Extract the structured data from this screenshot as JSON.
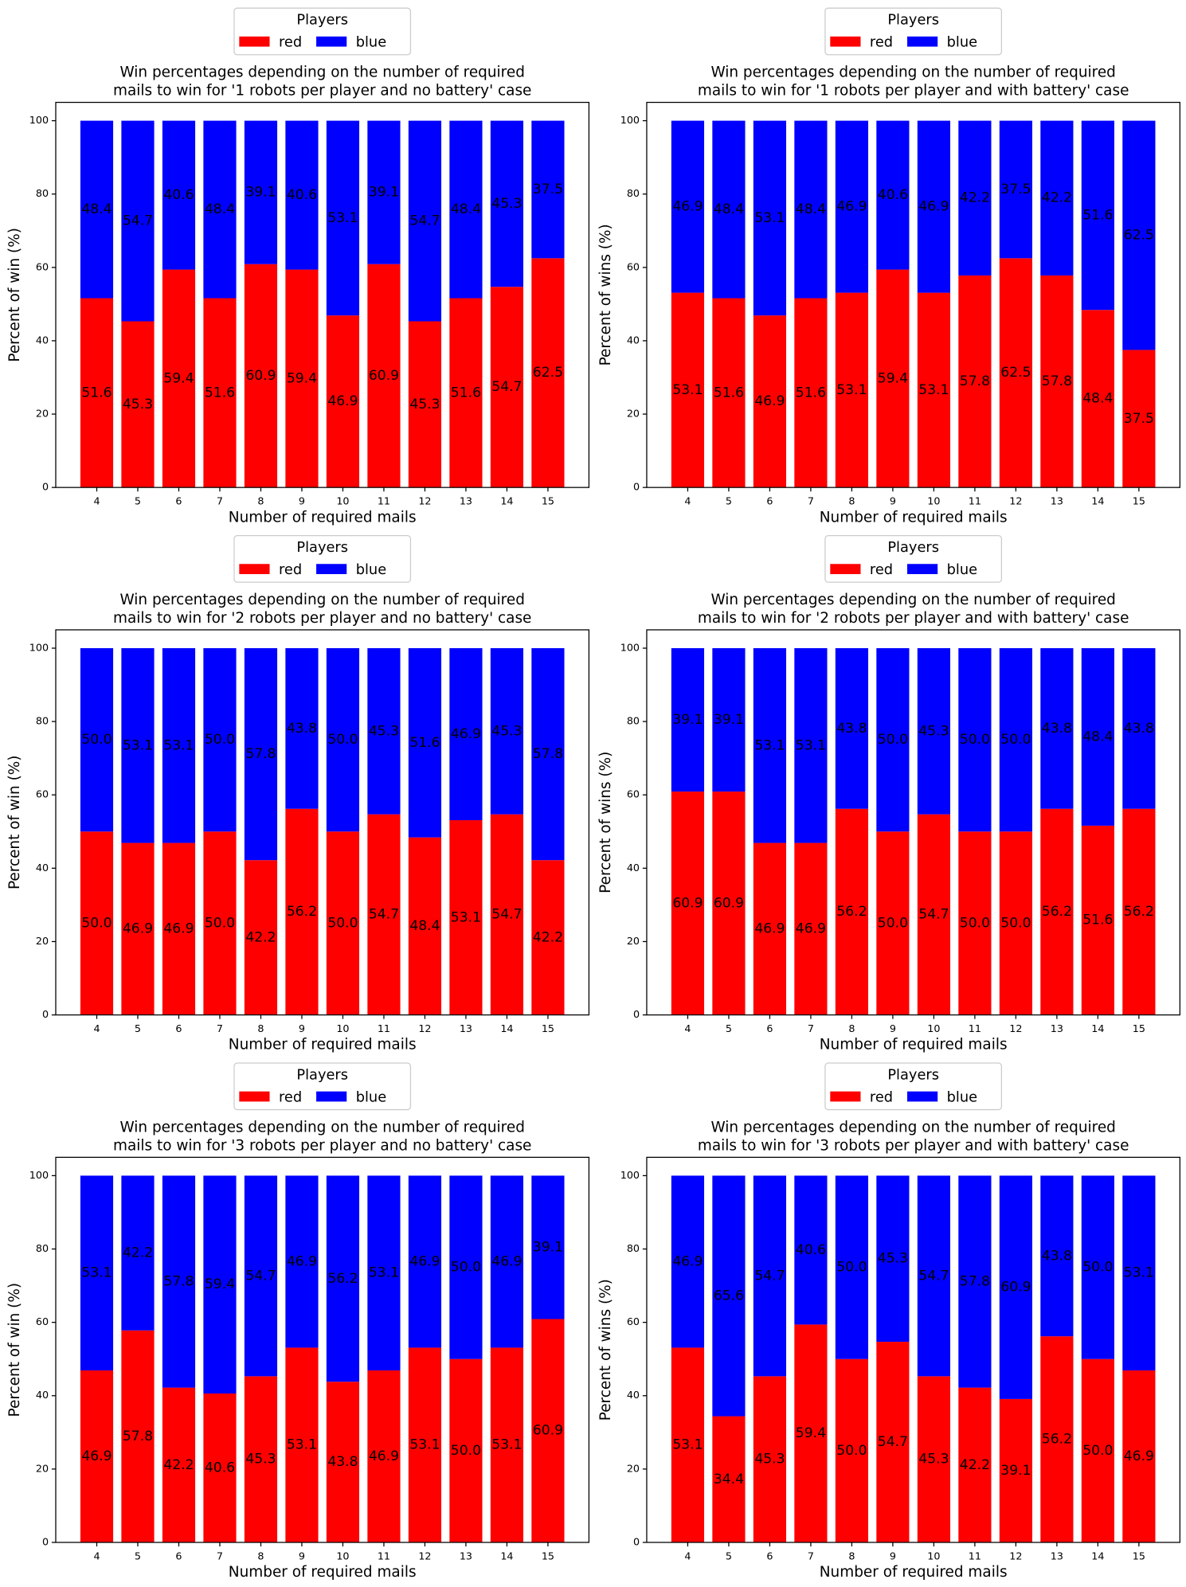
{
  "chart_data": [
    {
      "type": "bar",
      "stacked": true,
      "title": [
        "Win percentages depending on the number of required",
        "mails to win for '1 robots per player and no battery' case"
      ],
      "xlabel": "Number of required mails",
      "ylabel": "Percent of win (%)",
      "legend": {
        "title": "Players",
        "loc": "upper center"
      },
      "categories": [
        "4",
        "5",
        "6",
        "7",
        "8",
        "9",
        "10",
        "11",
        "12",
        "13",
        "14",
        "15"
      ],
      "series": [
        {
          "name": "red",
          "color": "#ff0000",
          "values": [
            51.6,
            45.3,
            59.4,
            51.6,
            60.9,
            59.4,
            46.9,
            60.9,
            45.3,
            51.6,
            54.7,
            62.5
          ],
          "value_labels": [
            "51.6",
            "45.3",
            "59.4",
            "51.6",
            "60.9",
            "59.4",
            "46.9",
            "60.9",
            "45.3",
            "51.6",
            "54.7",
            "62.5"
          ]
        },
        {
          "name": "blue",
          "color": "#0000ff",
          "values": [
            48.4,
            54.7,
            40.6,
            48.4,
            39.1,
            40.6,
            53.1,
            39.1,
            54.7,
            48.4,
            45.3,
            37.5
          ],
          "value_labels": [
            "48.4",
            "54.7",
            "40.6",
            "48.4",
            "39.1",
            "40.6",
            "53.1",
            "39.1",
            "54.7",
            "48.4",
            "45.3",
            "37.5"
          ]
        }
      ],
      "ylim": [
        0,
        105
      ],
      "yticks": [
        0,
        20,
        40,
        60,
        80,
        100
      ]
    },
    {
      "type": "bar",
      "stacked": true,
      "title": [
        "Win percentages depending on the number of required",
        "mails to win for '1 robots per player and with battery' case"
      ],
      "xlabel": "Number of required mails",
      "ylabel": "Percent of wins (%)",
      "legend": {
        "title": "Players",
        "loc": "upper center"
      },
      "categories": [
        "4",
        "5",
        "6",
        "7",
        "8",
        "9",
        "10",
        "11",
        "12",
        "13",
        "14",
        "15"
      ],
      "series": [
        {
          "name": "red",
          "color": "#ff0000",
          "values": [
            53.1,
            51.6,
            46.9,
            51.6,
            53.1,
            59.4,
            53.1,
            57.8,
            62.5,
            57.8,
            48.4,
            37.5
          ],
          "value_labels": [
            "53.1",
            "51.6",
            "46.9",
            "51.6",
            "53.1",
            "59.4",
            "53.1",
            "57.8",
            "62.5",
            "57.8",
            "48.4",
            "37.5"
          ]
        },
        {
          "name": "blue",
          "color": "#0000ff",
          "values": [
            46.9,
            48.4,
            53.1,
            48.4,
            46.9,
            40.6,
            46.9,
            42.2,
            37.5,
            42.2,
            51.6,
            62.5
          ],
          "value_labels": [
            "46.9",
            "48.4",
            "53.1",
            "48.4",
            "46.9",
            "40.6",
            "46.9",
            "42.2",
            "37.5",
            "42.2",
            "51.6",
            "62.5"
          ]
        }
      ],
      "ylim": [
        0,
        105
      ],
      "yticks": [
        0,
        20,
        40,
        60,
        80,
        100
      ]
    },
    {
      "type": "bar",
      "stacked": true,
      "title": [
        "Win percentages depending on the number of required",
        "mails to win for '2 robots per player and no battery' case"
      ],
      "xlabel": "Number of required mails",
      "ylabel": "Percent of win (%)",
      "legend": {
        "title": "Players",
        "loc": "upper center"
      },
      "categories": [
        "4",
        "5",
        "6",
        "7",
        "8",
        "9",
        "10",
        "11",
        "12",
        "13",
        "14",
        "15"
      ],
      "series": [
        {
          "name": "red",
          "color": "#ff0000",
          "values": [
            50.0,
            46.9,
            46.9,
            50.0,
            42.2,
            56.2,
            50.0,
            54.7,
            48.4,
            53.1,
            54.7,
            42.2
          ],
          "value_labels": [
            "50.0",
            "46.9",
            "46.9",
            "50.0",
            "42.2",
            "56.2",
            "50.0",
            "54.7",
            "48.4",
            "53.1",
            "54.7",
            "42.2"
          ]
        },
        {
          "name": "blue",
          "color": "#0000ff",
          "values": [
            50.0,
            53.1,
            53.1,
            50.0,
            57.8,
            43.8,
            50.0,
            45.3,
            51.6,
            46.9,
            45.3,
            57.8
          ],
          "value_labels": [
            "50.0",
            "53.1",
            "53.1",
            "50.0",
            "57.8",
            "43.8",
            "50.0",
            "45.3",
            "51.6",
            "46.9",
            "45.3",
            "57.8"
          ]
        }
      ],
      "ylim": [
        0,
        105
      ],
      "yticks": [
        0,
        20,
        40,
        60,
        80,
        100
      ]
    },
    {
      "type": "bar",
      "stacked": true,
      "title": [
        "Win percentages depending on the number of required",
        "mails to win for '2 robots per player and with battery' case"
      ],
      "xlabel": "Number of required mails",
      "ylabel": "Percent of wins (%)",
      "legend": {
        "title": "Players",
        "loc": "upper center"
      },
      "categories": [
        "4",
        "5",
        "6",
        "7",
        "8",
        "9",
        "10",
        "11",
        "12",
        "13",
        "14",
        "15"
      ],
      "series": [
        {
          "name": "red",
          "color": "#ff0000",
          "values": [
            60.9,
            60.9,
            46.9,
            46.9,
            56.2,
            50.0,
            54.7,
            50.0,
            50.0,
            56.2,
            51.6,
            56.2
          ],
          "value_labels": [
            "60.9",
            "60.9",
            "46.9",
            "46.9",
            "56.2",
            "50.0",
            "54.7",
            "50.0",
            "50.0",
            "56.2",
            "51.6",
            "56.2"
          ]
        },
        {
          "name": "blue",
          "color": "#0000ff",
          "values": [
            39.1,
            39.1,
            53.1,
            53.1,
            43.8,
            50.0,
            45.3,
            50.0,
            50.0,
            43.8,
            48.4,
            43.8
          ],
          "value_labels": [
            "39.1",
            "39.1",
            "53.1",
            "53.1",
            "43.8",
            "50.0",
            "45.3",
            "50.0",
            "50.0",
            "43.8",
            "48.4",
            "43.8"
          ]
        }
      ],
      "ylim": [
        0,
        105
      ],
      "yticks": [
        0,
        20,
        40,
        60,
        80,
        100
      ]
    },
    {
      "type": "bar",
      "stacked": true,
      "title": [
        "Win percentages depending on the number of required",
        "mails to win for '3 robots per player and no battery' case"
      ],
      "xlabel": "Number of required mails",
      "ylabel": "Percent of win (%)",
      "legend": {
        "title": "Players",
        "loc": "upper center"
      },
      "categories": [
        "4",
        "5",
        "6",
        "7",
        "8",
        "9",
        "10",
        "11",
        "12",
        "13",
        "14",
        "15"
      ],
      "series": [
        {
          "name": "red",
          "color": "#ff0000",
          "values": [
            46.9,
            57.8,
            42.2,
            40.6,
            45.3,
            53.1,
            43.8,
            46.9,
            53.1,
            50.0,
            53.1,
            60.9
          ],
          "value_labels": [
            "46.9",
            "57.8",
            "42.2",
            "40.6",
            "45.3",
            "53.1",
            "43.8",
            "46.9",
            "53.1",
            "50.0",
            "53.1",
            "60.9"
          ]
        },
        {
          "name": "blue",
          "color": "#0000ff",
          "values": [
            53.1,
            42.2,
            57.8,
            59.4,
            54.7,
            46.9,
            56.2,
            53.1,
            46.9,
            50.0,
            46.9,
            39.1
          ],
          "value_labels": [
            "53.1",
            "42.2",
            "57.8",
            "59.4",
            "54.7",
            "46.9",
            "56.2",
            "53.1",
            "46.9",
            "50.0",
            "46.9",
            "39.1"
          ]
        }
      ],
      "ylim": [
        0,
        105
      ],
      "yticks": [
        0,
        20,
        40,
        60,
        80,
        100
      ]
    },
    {
      "type": "bar",
      "stacked": true,
      "title": [
        "Win percentages depending on the number of required",
        "mails to win for '3 robots per player and with battery' case"
      ],
      "xlabel": "Number of required mails",
      "ylabel": "Percent of wins (%)",
      "legend": {
        "title": "Players",
        "loc": "upper center"
      },
      "categories": [
        "4",
        "5",
        "6",
        "7",
        "8",
        "9",
        "10",
        "11",
        "12",
        "13",
        "14",
        "15"
      ],
      "series": [
        {
          "name": "red",
          "color": "#ff0000",
          "values": [
            53.1,
            34.4,
            45.3,
            59.4,
            50.0,
            54.7,
            45.3,
            42.2,
            39.1,
            56.2,
            50.0,
            46.9
          ],
          "value_labels": [
            "53.1",
            "34.4",
            "45.3",
            "59.4",
            "50.0",
            "54.7",
            "45.3",
            "42.2",
            "39.1",
            "56.2",
            "50.0",
            "46.9"
          ]
        },
        {
          "name": "blue",
          "color": "#0000ff",
          "values": [
            46.9,
            65.6,
            54.7,
            40.6,
            50.0,
            45.3,
            54.7,
            57.8,
            60.9,
            43.8,
            50.0,
            53.1
          ],
          "value_labels": [
            "46.9",
            "65.6",
            "54.7",
            "40.6",
            "50.0",
            "45.3",
            "54.7",
            "57.8",
            "60.9",
            "43.8",
            "50.0",
            "53.1"
          ]
        }
      ],
      "ylim": [
        0,
        105
      ],
      "yticks": [
        0,
        20,
        40,
        60,
        80,
        100
      ]
    }
  ]
}
